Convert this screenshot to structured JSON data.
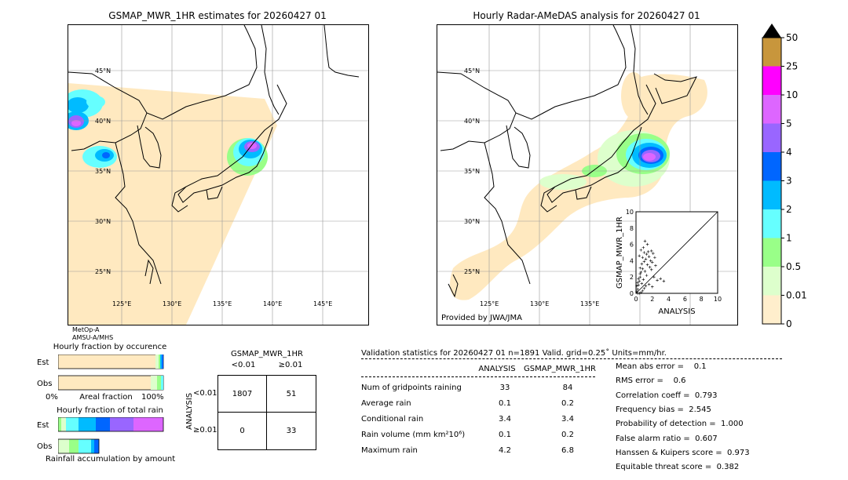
{
  "map_left": {
    "title": "GSMAP_MWR_1HR estimates for 20260427 01",
    "lat_labels": [
      "45°N",
      "40°N",
      "35°N",
      "30°N",
      "25°N"
    ],
    "lon_labels": [
      "125°E",
      "130°E",
      "135°E",
      "140°E",
      "145°E"
    ],
    "sat1": "MetOp-A",
    "sat2": "AMSU-A/MHS"
  },
  "map_right": {
    "title": "Hourly Radar-AMeDAS analysis for 20260427 01",
    "lat_labels": [
      "45°N",
      "40°N",
      "35°N",
      "30°N",
      "25°N"
    ],
    "lon_labels": [
      "125°E",
      "130°E",
      "135°E"
    ],
    "credit": "Provided by JWA/JMA"
  },
  "colorbar": {
    "ticks": [
      "50",
      "25",
      "10",
      "5",
      "4",
      "3",
      "2",
      "1",
      "0.5",
      "0.01",
      "0"
    ],
    "colors": [
      "#c8963c",
      "#ff00ff",
      "#dd66ff",
      "#9966ff",
      "#0066ff",
      "#00bbff",
      "#66ffff",
      "#99ff88",
      "#ddffcc",
      "#ffeecc"
    ]
  },
  "fraction": {
    "occ_title": "Hourly fraction by occurence",
    "est_label": "Est",
    "obs_label": "Obs",
    "axis_left": "0%",
    "axis_mid": "Areal fraction",
    "axis_right": "100%",
    "tot_title": "Hourly fraction of total rain",
    "acc_label": "Rainfall accumulation by amount"
  },
  "contingency": {
    "col_title": "GSMAP_MWR_1HR",
    "col1": "<0.01",
    "col2": "≥0.01",
    "row_title": "ANALYSIS",
    "row1": "<0.01",
    "row2": "≥0.01",
    "a": "1807",
    "b": "51",
    "c": "0",
    "d": "33"
  },
  "stats": {
    "header": "Validation statistics for 20260427 01  n=1891 Valid. grid=0.25˚ Units=mm/hr.",
    "col_analysis": "ANALYSIS",
    "col_gsmap": "GSMAP_MWR_1HR",
    "rows": [
      {
        "label": "Num of gridpoints raining",
        "analysis": "33",
        "gsmap": "84"
      },
      {
        "label": "Average rain",
        "analysis": "0.1",
        "gsmap": "0.2"
      },
      {
        "label": "Conditional rain",
        "analysis": "3.4",
        "gsmap": "3.4"
      },
      {
        "label": "Rain volume (mm km²10⁶)",
        "analysis": "0.1",
        "gsmap": "0.2"
      },
      {
        "label": "Maximum rain",
        "analysis": "4.2",
        "gsmap": "6.8"
      }
    ],
    "scores": [
      "Mean abs error =    0.1",
      "RMS error =    0.6",
      "Correlation coeff =  0.793",
      "Frequency bias =  2.545",
      "Probability of detection =  1.000",
      "False alarm ratio =  0.607",
      "Hanssen & Kuipers score =  0.973",
      "Equitable threat score =  0.382"
    ]
  },
  "chart_data": {
    "type": "scatter",
    "xlabel": "ANALYSIS",
    "ylabel": "GSMAP_MWR_1HR",
    "xlim": [
      0,
      10
    ],
    "ylim": [
      0,
      10
    ],
    "ticks": [
      "0",
      "2",
      "4",
      "6",
      "8",
      "10"
    ],
    "points": [
      [
        0.1,
        0.2
      ],
      [
        0.2,
        0.5
      ],
      [
        0.3,
        1.0
      ],
      [
        0.4,
        1.5
      ],
      [
        0.5,
        2.0
      ],
      [
        0.6,
        2.6
      ],
      [
        0.5,
        3.1
      ],
      [
        0.7,
        3.6
      ],
      [
        0.8,
        4.4
      ],
      [
        1.0,
        5.0
      ],
      [
        1.1,
        6.4
      ],
      [
        0.6,
        5.3
      ],
      [
        0.9,
        5.6
      ],
      [
        1.2,
        4.2
      ],
      [
        1.3,
        4.8
      ],
      [
        1.5,
        5.1
      ],
      [
        1.6,
        4.5
      ],
      [
        1.8,
        4.0
      ],
      [
        2.0,
        3.8
      ],
      [
        1.9,
        5.2
      ],
      [
        2.1,
        4.9
      ],
      [
        2.3,
        4.4
      ],
      [
        1.4,
        3.5
      ],
      [
        1.7,
        3.2
      ],
      [
        1.1,
        2.7
      ],
      [
        1.3,
        2.2
      ],
      [
        2.2,
        2.0
      ],
      [
        2.6,
        1.6
      ],
      [
        3.0,
        1.8
      ],
      [
        3.4,
        1.5
      ],
      [
        0.2,
        0.0
      ],
      [
        0.4,
        0.0
      ],
      [
        0.6,
        0.1
      ],
      [
        0.8,
        0.3
      ],
      [
        1.0,
        0.6
      ],
      [
        1.2,
        0.9
      ],
      [
        0.3,
        1.8
      ],
      [
        0.5,
        2.4
      ],
      [
        0.7,
        1.2
      ],
      [
        0.9,
        1.7
      ],
      [
        2.0,
        0.8
      ],
      [
        1.6,
        1.1
      ],
      [
        0.1,
        0.9
      ],
      [
        0.2,
        1.3
      ],
      [
        1.0,
        3.9
      ],
      [
        0.8,
        3.0
      ],
      [
        1.9,
        2.9
      ],
      [
        2.4,
        3.4
      ],
      [
        0.4,
        4.6
      ],
      [
        1.4,
        6.0
      ]
    ]
  }
}
